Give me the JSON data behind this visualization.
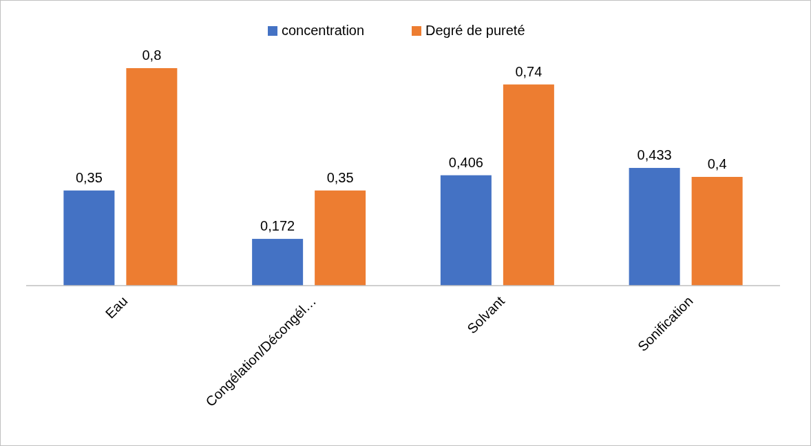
{
  "chart_data": {
    "type": "bar",
    "categories": [
      "Eau",
      "Congélation/Décongél…",
      "Solvant",
      "Sonification"
    ],
    "series": [
      {
        "name": "concentration",
        "color": "#4472c4",
        "values": [
          0.35,
          0.172,
          0.406,
          0.433
        ],
        "value_labels": [
          "0,35",
          "0,172",
          "0,406",
          "0,433"
        ]
      },
      {
        "name": "Degré de pureté",
        "color": "#ed7d31",
        "values": [
          0.8,
          0.35,
          0.74,
          0.4
        ],
        "value_labels": [
          "0,8",
          "0,35",
          "0,74",
          "0,4"
        ]
      }
    ],
    "legend": "top"
  }
}
